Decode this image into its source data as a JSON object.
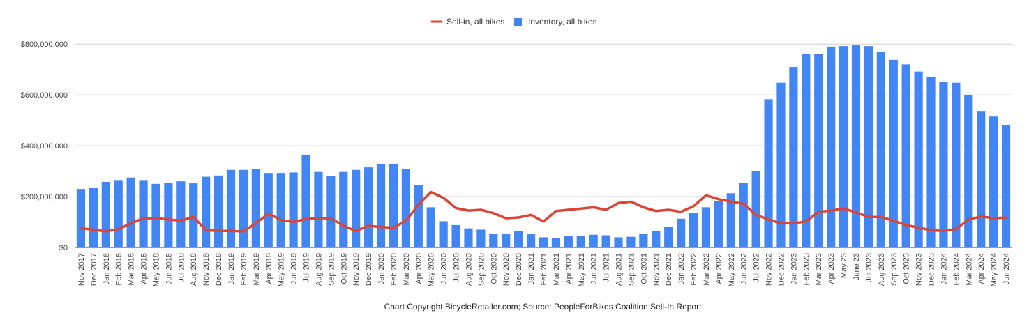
{
  "caption": "Chart Copyright BicycleRetailer.com; Source: PeopleForBikes Coalition Sell-In Report",
  "legend": [
    {
      "label": "Sell-in, all bikes",
      "color": "#DB4437",
      "kind": "line"
    },
    {
      "label": "Inventory, all bikes",
      "color": "#4285F4",
      "kind": "bar"
    }
  ],
  "chart_data": {
    "type": "bar",
    "ylim": [
      0,
      850000000
    ],
    "yticks": [
      0,
      200000000,
      400000000,
      600000000,
      800000000
    ],
    "ytick_labels": [
      "$0",
      "$200,000,000",
      "$400,000,000",
      "$600,000,000",
      "$800,000,000"
    ],
    "grid": true,
    "legend_position": "top-center",
    "categories": [
      "Nov 2017",
      "Dec 2017",
      "Jan 2018",
      "Feb 2018",
      "Mar 2018",
      "Apr 2018",
      "May 2018",
      "Jun 2018",
      "Jul 2018",
      "Aug 2018",
      "Nov 2018",
      "Dec 2018",
      "Jan 2019",
      "Feb 2019",
      "Mar 2019",
      "Apr 2019",
      "May 2019",
      "Jun 2019",
      "Jul 2019",
      "Aug 2019",
      "Sep 2019",
      "Oct 2019",
      "Nov 2019",
      "Dec 2019",
      "Jan 2020",
      "Feb 2020",
      "Mar 2020",
      "Apr 2020",
      "May 2020",
      "Jun 2020",
      "Jul 2020",
      "Aug 2020",
      "Sep 2020",
      "Oct 2020",
      "Nov 2020",
      "Dec 2020",
      "Jan 2021",
      "Feb 2021",
      "Mar 2021",
      "Apr 2021",
      "May 2021",
      "Jun 2021",
      "Jul 2021",
      "Aug 2021",
      "Sep 2021",
      "Oct 2021",
      "Nov 2021",
      "Dec 2021",
      "Jan 2022",
      "Feb 2022",
      "Mar 2022",
      "Apr 2022",
      "May 2022",
      "Jun 2022",
      "Jul 2022",
      "Nov 2022",
      "Dec 2022",
      "Jan 2023",
      "Feb 2023",
      "Mar 2023",
      "Apr 2023",
      "May 23",
      "June 23",
      "Jul 2023",
      "Aug 2023",
      "Sep 2023",
      "Oct 2023",
      "Nov 2023",
      "Dec 2023",
      "Jan 2024",
      "Feb 2024",
      "Mar 2024",
      "Apr 2024",
      "May 2024",
      "Jun 2024"
    ],
    "series": [
      {
        "name": "Inventory, all bikes",
        "type": "bar",
        "color": "#4285F4",
        "values": [
          230000000,
          235000000,
          258000000,
          265000000,
          275000000,
          265000000,
          250000000,
          255000000,
          260000000,
          252000000,
          278000000,
          283000000,
          305000000,
          305000000,
          308000000,
          293000000,
          293000000,
          295000000,
          362000000,
          297000000,
          280000000,
          297000000,
          305000000,
          315000000,
          327000000,
          327000000,
          308000000,
          245000000,
          158000000,
          103000000,
          88000000,
          75000000,
          70000000,
          55000000,
          52000000,
          65000000,
          52000000,
          40000000,
          38000000,
          45000000,
          45000000,
          50000000,
          48000000,
          40000000,
          42000000,
          55000000,
          65000000,
          82000000,
          113000000,
          135000000,
          158000000,
          182000000,
          213000000,
          253000000,
          300000000,
          583000000,
          648000000,
          710000000,
          762000000,
          762000000,
          790000000,
          792000000,
          795000000,
          792000000,
          768000000,
          738000000,
          720000000,
          692000000,
          672000000,
          652000000,
          648000000,
          598000000,
          537000000,
          515000000,
          480000000
        ]
      },
      {
        "name": "Sell-in, all bikes",
        "type": "line",
        "color": "#DB4437",
        "values": [
          75000000,
          70000000,
          63000000,
          72000000,
          95000000,
          115000000,
          115000000,
          110000000,
          105000000,
          120000000,
          68000000,
          65000000,
          65000000,
          63000000,
          95000000,
          133000000,
          108000000,
          100000000,
          112000000,
          115000000,
          115000000,
          85000000,
          65000000,
          85000000,
          80000000,
          78000000,
          105000000,
          168000000,
          218000000,
          195000000,
          155000000,
          145000000,
          148000000,
          135000000,
          115000000,
          118000000,
          128000000,
          102000000,
          143000000,
          148000000,
          153000000,
          158000000,
          148000000,
          175000000,
          180000000,
          158000000,
          143000000,
          148000000,
          140000000,
          162000000,
          205000000,
          190000000,
          180000000,
          172000000,
          128000000,
          110000000,
          95000000,
          95000000,
          102000000,
          140000000,
          145000000,
          153000000,
          138000000,
          120000000,
          120000000,
          105000000,
          88000000,
          78000000,
          68000000,
          65000000,
          72000000,
          110000000,
          122000000,
          115000000,
          118000000
        ]
      }
    ]
  }
}
